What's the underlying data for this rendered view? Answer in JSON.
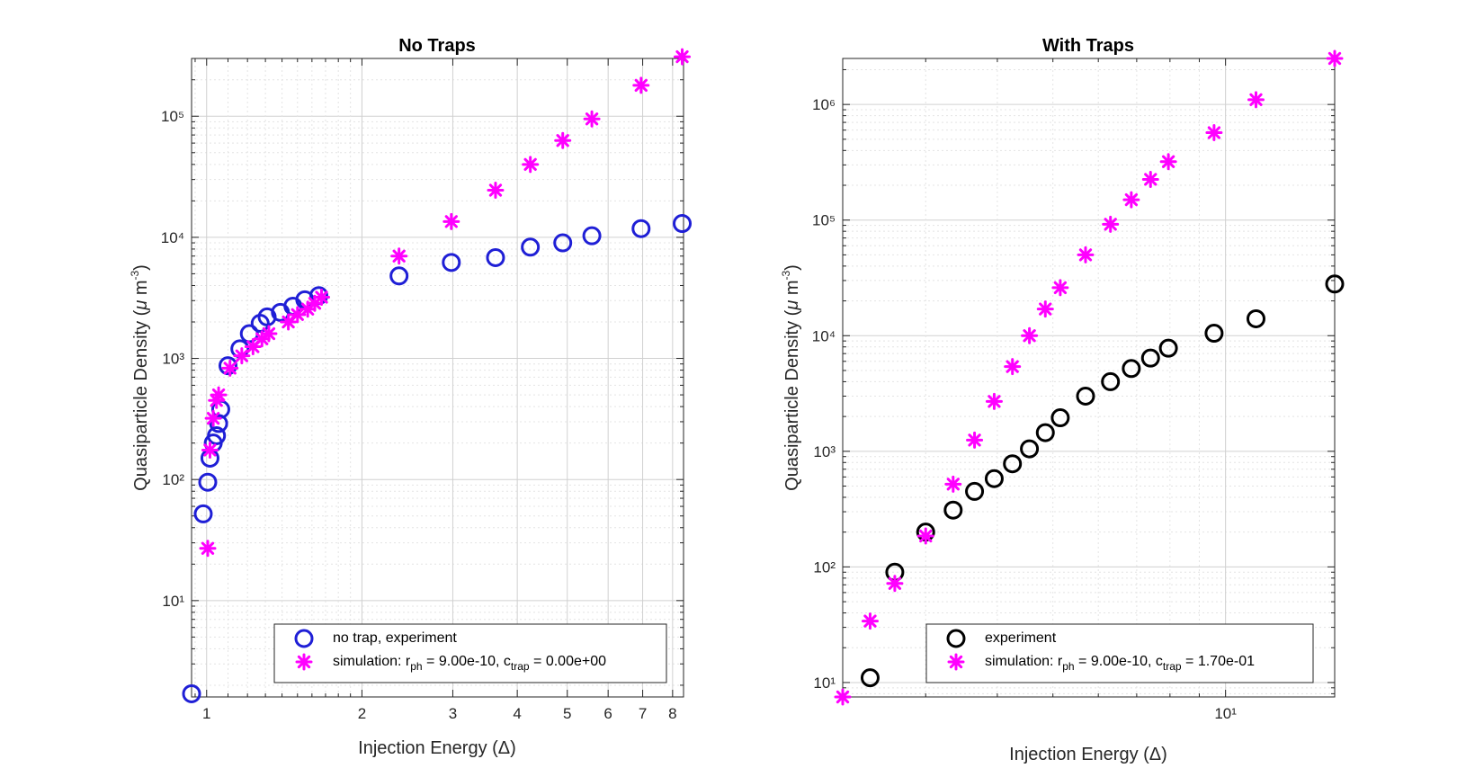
{
  "chart_data": [
    {
      "type": "scatter",
      "title": "No Traps",
      "xlabel": "Injection Energy (Δ)",
      "ylabel": "Quasiparticle Density (μ m^-3)",
      "xscale": "log",
      "yscale": "log",
      "xlim": [
        0.935,
        8.4
      ],
      "ylim": [
        1.6,
        300000
      ],
      "grid": true,
      "legend_position": "bottom-right",
      "x_tick_labels": [
        "1",
        "2",
        "3",
        "4",
        "5",
        "6",
        "7",
        "8"
      ],
      "x_ticks": [
        1,
        2,
        3,
        4,
        5,
        6,
        7,
        8
      ],
      "x_minor_ticks": [
        0.95,
        1.1,
        1.2,
        1.3,
        1.4,
        1.5,
        1.6,
        1.7,
        1.8,
        1.9
      ],
      "y_ticks": [
        10,
        100,
        1000,
        10000,
        100000
      ],
      "series": [
        {
          "name": "no trap, experiment",
          "marker": "circle",
          "color": "#1f1fd6",
          "points": [
            [
              0.935,
              1.7
            ],
            [
              0.985,
              52
            ],
            [
              1.005,
              95
            ],
            [
              1.015,
              150
            ],
            [
              1.03,
              200
            ],
            [
              1.045,
              230
            ],
            [
              1.055,
              290
            ],
            [
              1.065,
              380
            ],
            [
              1.1,
              870
            ],
            [
              1.16,
              1200
            ],
            [
              1.21,
              1600
            ],
            [
              1.27,
              1950
            ],
            [
              1.31,
              2200
            ],
            [
              1.39,
              2400
            ],
            [
              1.47,
              2700
            ],
            [
              1.55,
              3050
            ],
            [
              1.65,
              3300
            ],
            [
              2.36,
              4800
            ],
            [
              2.98,
              6200
            ],
            [
              3.63,
              6800
            ],
            [
              4.24,
              8300
            ],
            [
              4.9,
              9000
            ],
            [
              5.58,
              10300
            ],
            [
              6.95,
              11800
            ],
            [
              8.35,
              13000
            ]
          ]
        },
        {
          "name": "simulation: r_ph = 9.00e-10, c_trap = 0.00e+00",
          "marker": "asterisk",
          "color": "#ff00ff",
          "points": [
            [
              1.005,
              27
            ],
            [
              1.015,
              175
            ],
            [
              1.03,
              320
            ],
            [
              1.045,
              450
            ],
            [
              1.055,
              500
            ],
            [
              1.11,
              830
            ],
            [
              1.17,
              1050
            ],
            [
              1.23,
              1250
            ],
            [
              1.28,
              1450
            ],
            [
              1.32,
              1600
            ],
            [
              1.44,
              2000
            ],
            [
              1.5,
              2300
            ],
            [
              1.57,
              2550
            ],
            [
              1.62,
              2850
            ],
            [
              1.67,
              3200
            ],
            [
              2.36,
              7000
            ],
            [
              2.98,
              13500
            ],
            [
              3.63,
              24500
            ],
            [
              4.24,
              40000
            ],
            [
              4.9,
              63000
            ],
            [
              5.58,
              95000
            ],
            [
              6.95,
              180000
            ],
            [
              8.35,
              310000
            ]
          ]
        }
      ],
      "legend": {
        "entries": [
          {
            "text": "no trap, experiment"
          },
          {
            "pre": "simulation: r",
            "sub1": "ph",
            "mid": " = 9.00e-10, c",
            "sub2": "trap",
            "post": " = 0.00e+00"
          }
        ]
      }
    },
    {
      "type": "scatter",
      "title": "With Traps",
      "xlabel": "Injection Energy (Δ)",
      "ylabel": "Quasiparticle Density (μ m^-3)",
      "xscale": "log",
      "yscale": "log",
      "xlim": [
        2.15,
        15.5
      ],
      "ylim": [
        7.5,
        2500000
      ],
      "grid": true,
      "legend_position": "bottom-right",
      "x_ticks": [
        10
      ],
      "x_minor_ticks": [
        3,
        4,
        5,
        6,
        7,
        8,
        9
      ],
      "y_ticks": [
        10,
        100,
        1000,
        10000,
        100000,
        1000000
      ],
      "series": [
        {
          "name": "experiment",
          "marker": "circle",
          "color": "#000000",
          "points": [
            [
              2.4,
              11
            ],
            [
              2.65,
              90
            ],
            [
              3.0,
              200
            ],
            [
              3.35,
              310
            ],
            [
              3.65,
              450
            ],
            [
              3.95,
              580
            ],
            [
              4.25,
              780
            ],
            [
              4.55,
              1050
            ],
            [
              4.85,
              1450
            ],
            [
              5.15,
              1950
            ],
            [
              5.7,
              3000
            ],
            [
              6.3,
              4000
            ],
            [
              6.85,
              5200
            ],
            [
              7.4,
              6400
            ],
            [
              7.95,
              7800
            ],
            [
              9.55,
              10500
            ],
            [
              11.3,
              14000
            ],
            [
              15.5,
              28000
            ]
          ]
        },
        {
          "name": "simulation: r_ph = 9.00e-10, c_trap = 1.70e-01",
          "marker": "asterisk",
          "color": "#ff00ff",
          "points": [
            [
              2.15,
              7.5
            ],
            [
              2.4,
              34
            ],
            [
              2.65,
              72
            ],
            [
              3.0,
              185
            ],
            [
              3.35,
              520
            ],
            [
              3.65,
              1250
            ],
            [
              3.95,
              2700
            ],
            [
              4.25,
              5400
            ],
            [
              4.55,
              10000
            ],
            [
              4.85,
              17000
            ],
            [
              5.15,
              26000
            ],
            [
              5.7,
              50000
            ],
            [
              6.3,
              92000
            ],
            [
              6.85,
              150000
            ],
            [
              7.4,
              225000
            ],
            [
              7.95,
              320000
            ],
            [
              9.55,
              570000
            ],
            [
              11.3,
              1100000
            ],
            [
              15.5,
              2500000
            ]
          ]
        }
      ],
      "legend": {
        "entries": [
          {
            "text": "experiment"
          },
          {
            "pre": "simulation: r",
            "sub1": "ph",
            "mid": " = 9.00e-10, c",
            "sub2": "trap",
            "post": " = 1.70e-01"
          }
        ]
      }
    }
  ]
}
